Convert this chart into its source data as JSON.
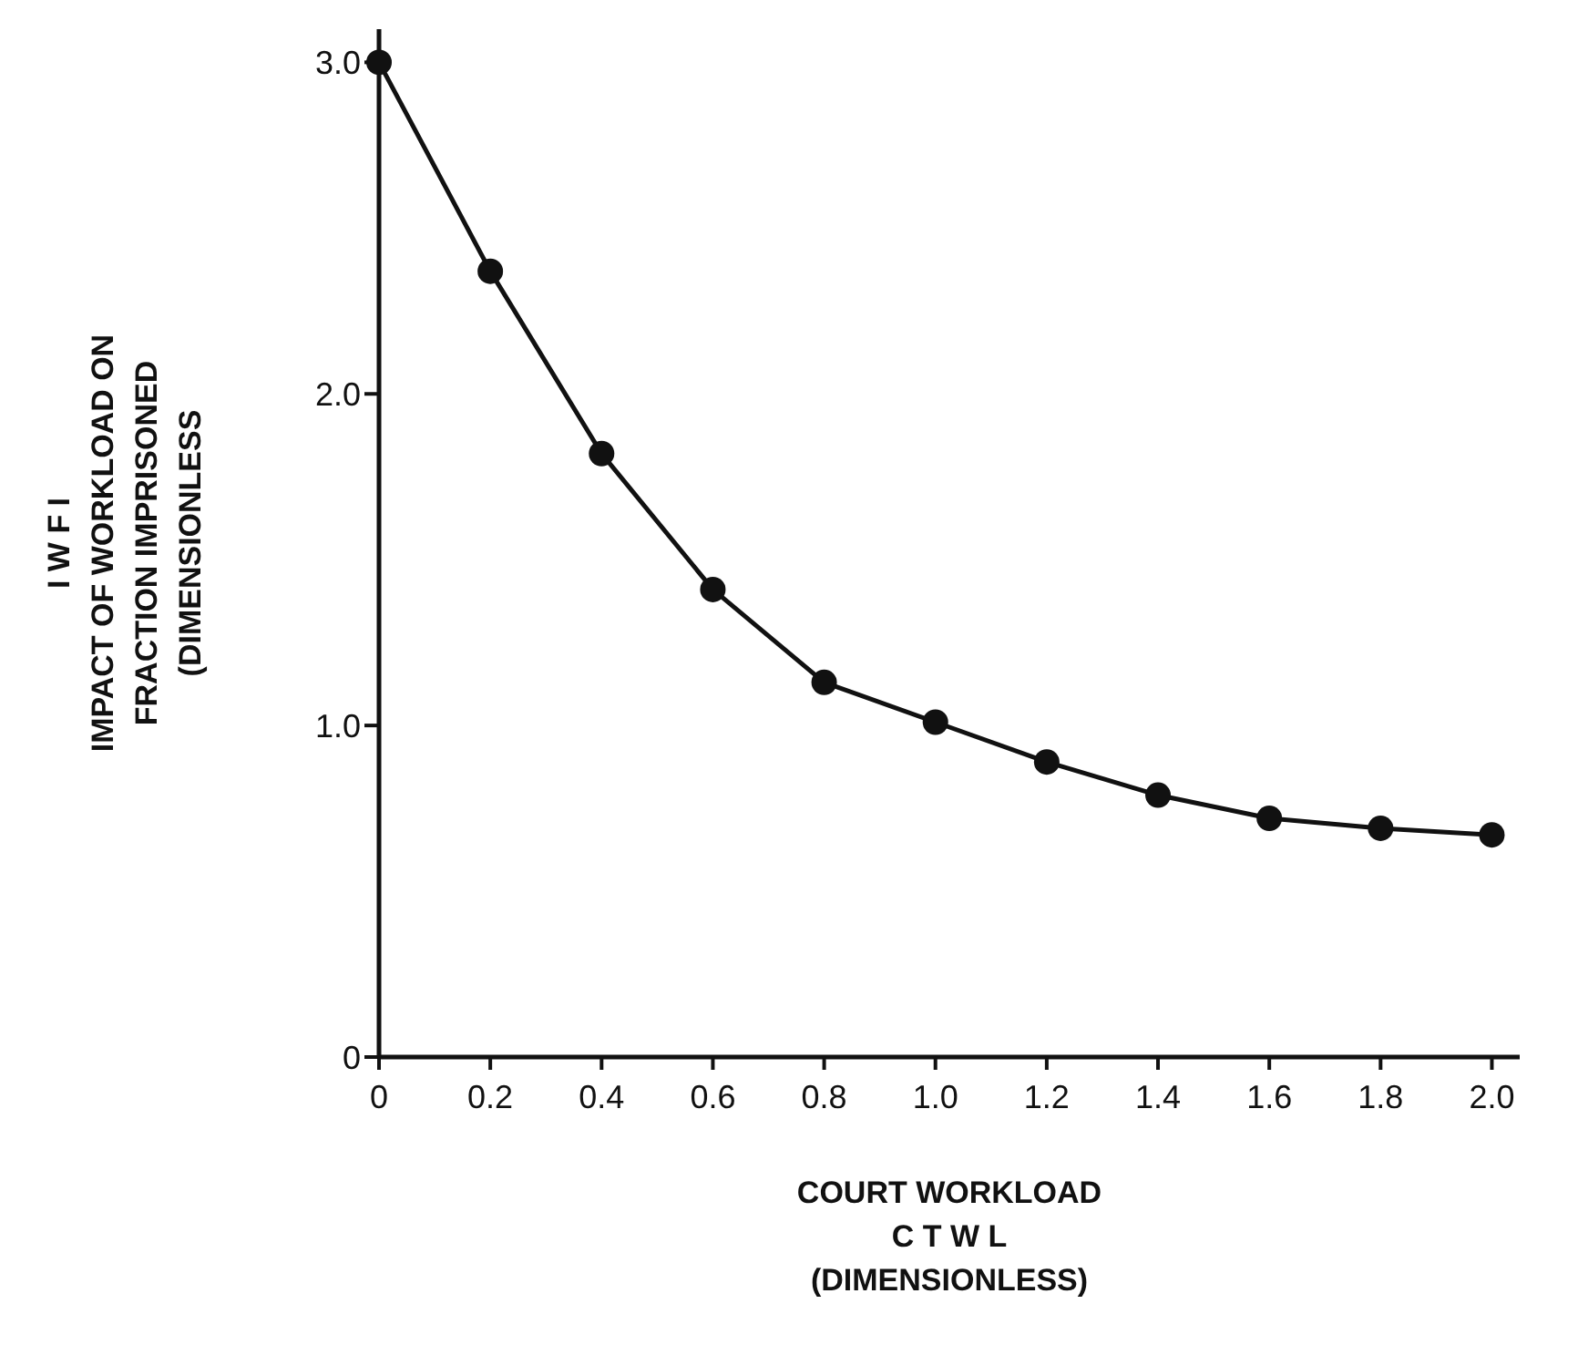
{
  "chart_data": {
    "type": "line",
    "xlabel": "COURT WORKLOAD\nC T W L\n(DIMENSIONLESS)",
    "ylabel": "I W F I\nIMPACT OF WORKLOAD ON\nFRACTION IMPRISONED\n(DIMENSIONLESS",
    "x": [
      0,
      0.2,
      0.4,
      0.6,
      0.8,
      1.0,
      1.2,
      1.4,
      1.6,
      1.8,
      2.0
    ],
    "series": [
      {
        "color": "#111111",
        "values": [
          3.0,
          2.37,
          1.82,
          1.41,
          1.13,
          1.01,
          0.89,
          0.79,
          0.72,
          0.69,
          0.67
        ]
      }
    ],
    "xlim": [
      0,
      2.05
    ],
    "ylim": [
      0,
      3.1
    ],
    "xticks": [
      {
        "value": 0,
        "label": "0"
      },
      0.2,
      0.4,
      0.6,
      0.8,
      {
        "value": 1,
        "label": "1.0"
      },
      1.2,
      1.4,
      1.6,
      1.8,
      {
        "value": 2,
        "label": "2.0"
      }
    ],
    "yticks": [
      {
        "value": 0,
        "label": "0"
      },
      {
        "value": 1,
        "label": "1.0"
      },
      {
        "value": 2,
        "label": "2.0"
      },
      {
        "value": 3,
        "label": "3.0"
      }
    ],
    "grid": false,
    "marker": "circle",
    "line_style": "solid"
  }
}
